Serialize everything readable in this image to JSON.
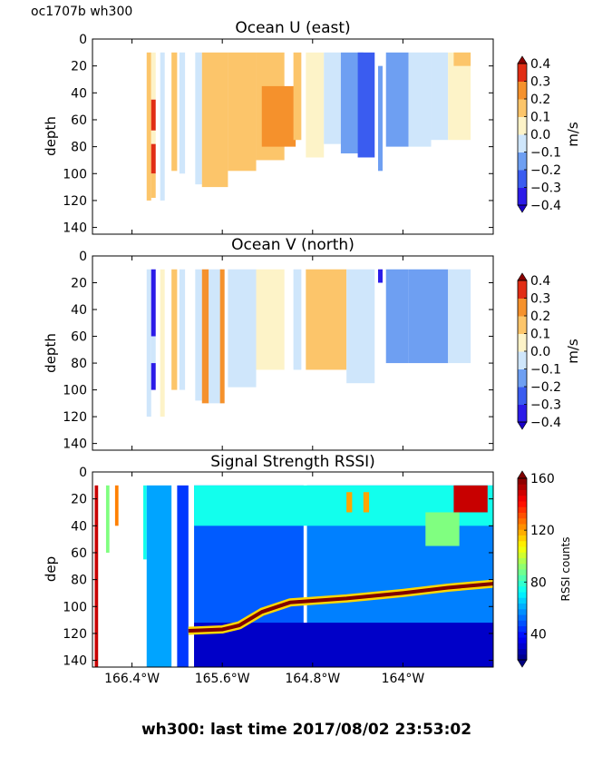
{
  "header": {
    "label": "oc1707b wh300"
  },
  "footer": {
    "text": "wh300: last time 2017/08/02 23:53:02"
  },
  "colors": {
    "jet_lo": "#00007f",
    "jet_hi": "#7f0000",
    "axes": "#000000",
    "background": "#ffffff"
  },
  "chart_data": [
    {
      "type": "heatmap",
      "title": "Ocean U (east)",
      "ylabel": "depth",
      "ylim": [
        145,
        0
      ],
      "yticks": [
        "0",
        "20",
        "40",
        "60",
        "80",
        "100",
        "120",
        "140"
      ],
      "xlim": [
        -166.75,
        -163.2
      ],
      "colorbar": {
        "label": "m/s",
        "range": [
          -0.4,
          0.4
        ],
        "ticks": [
          "0.4",
          "0.3",
          "0.2",
          "0.1",
          "0.0",
          "−0.1",
          "−0.2",
          "−0.3",
          "−0.4"
        ],
        "levels": 8
      },
      "cells": [
        {
          "x": [
            -166.27,
            -166.23
          ],
          "y": [
            10,
            120
          ],
          "value": 0.1
        },
        {
          "x": [
            -166.23,
            -166.19
          ],
          "y": [
            10,
            45
          ],
          "value": 0.0
        },
        {
          "x": [
            -166.23,
            -166.19
          ],
          "y": [
            45,
            68
          ],
          "value": 0.4
        },
        {
          "x": [
            -166.23,
            -166.19
          ],
          "y": [
            68,
            78
          ],
          "value": 0.0
        },
        {
          "x": [
            -166.23,
            -166.19
          ],
          "y": [
            78,
            100
          ],
          "value": 0.35
        },
        {
          "x": [
            -166.23,
            -166.19
          ],
          "y": [
            100,
            118
          ],
          "value": 0.1
        },
        {
          "x": [
            -166.15,
            -166.11
          ],
          "y": [
            10,
            120
          ],
          "value": -0.1
        },
        {
          "x": [
            -166.05,
            -166.0
          ],
          "y": [
            10,
            98
          ],
          "value": 0.1
        },
        {
          "x": [
            -165.98,
            -165.93
          ],
          "y": [
            10,
            100
          ],
          "value": -0.1
        },
        {
          "x": [
            -165.84,
            -165.78
          ],
          "y": [
            10,
            108
          ],
          "value": -0.05
        },
        {
          "x": [
            -165.78,
            -165.55
          ],
          "y": [
            10,
            110
          ],
          "value": 0.1
        },
        {
          "x": [
            -165.55,
            -165.3
          ],
          "y": [
            10,
            98
          ],
          "value": 0.15
        },
        {
          "x": [
            -165.3,
            -165.05
          ],
          "y": [
            10,
            90
          ],
          "value": 0.15
        },
        {
          "x": [
            -165.25,
            -164.95
          ],
          "y": [
            35,
            80
          ],
          "value": 0.25
        },
        {
          "x": [
            -164.97,
            -164.9
          ],
          "y": [
            10,
            75
          ],
          "value": 0.1
        },
        {
          "x": [
            -164.86,
            -164.7
          ],
          "y": [
            10,
            88
          ],
          "value": 0.0
        },
        {
          "x": [
            -164.7,
            -164.55
          ],
          "y": [
            10,
            78
          ],
          "value": -0.1
        },
        {
          "x": [
            -164.55,
            -164.35
          ],
          "y": [
            10,
            85
          ],
          "value": -0.2
        },
        {
          "x": [
            -164.4,
            -164.25
          ],
          "y": [
            10,
            88
          ],
          "value": -0.3
        },
        {
          "x": [
            -164.22,
            -164.18
          ],
          "y": [
            20,
            98
          ],
          "value": -0.2
        },
        {
          "x": [
            -164.15,
            -163.95
          ],
          "y": [
            10,
            80
          ],
          "value": -0.2
        },
        {
          "x": [
            -163.95,
            -163.75
          ],
          "y": [
            10,
            80
          ],
          "value": -0.1
        },
        {
          "x": [
            -163.75,
            -163.6
          ],
          "y": [
            10,
            75
          ],
          "value": -0.05
        },
        {
          "x": [
            -163.6,
            -163.4
          ],
          "y": [
            10,
            75
          ],
          "value": 0.05
        },
        {
          "x": [
            -163.55,
            -163.4
          ],
          "y": [
            10,
            20
          ],
          "value": 0.15
        }
      ]
    },
    {
      "type": "heatmap",
      "title": "Ocean V (north)",
      "ylabel": "depth",
      "ylim": [
        145,
        0
      ],
      "yticks": [
        "0",
        "20",
        "40",
        "60",
        "80",
        "100",
        "120",
        "140"
      ],
      "xlim": [
        -166.75,
        -163.2
      ],
      "colorbar": {
        "label": "m/s",
        "range": [
          -0.4,
          0.4
        ],
        "ticks": [
          "0.4",
          "0.3",
          "0.2",
          "0.1",
          "0.0",
          "−0.1",
          "−0.2",
          "−0.3",
          "−0.4"
        ],
        "levels": 8
      },
      "cells": [
        {
          "x": [
            -166.27,
            -166.23
          ],
          "y": [
            10,
            120
          ],
          "value": -0.1
        },
        {
          "x": [
            -166.23,
            -166.19
          ],
          "y": [
            10,
            60
          ],
          "value": -0.4
        },
        {
          "x": [
            -166.23,
            -166.19
          ],
          "y": [
            60,
            80
          ],
          "value": -0.05
        },
        {
          "x": [
            -166.23,
            -166.19
          ],
          "y": [
            80,
            100
          ],
          "value": -0.4
        },
        {
          "x": [
            -166.15,
            -166.11
          ],
          "y": [
            10,
            120
          ],
          "value": 0.05
        },
        {
          "x": [
            -166.05,
            -166.0
          ],
          "y": [
            10,
            100
          ],
          "value": 0.1
        },
        {
          "x": [
            -165.98,
            -165.93
          ],
          "y": [
            10,
            100
          ],
          "value": -0.1
        },
        {
          "x": [
            -165.84,
            -165.78
          ],
          "y": [
            10,
            108
          ],
          "value": -0.1
        },
        {
          "x": [
            -165.78,
            -165.72
          ],
          "y": [
            10,
            110
          ],
          "value": 0.2
        },
        {
          "x": [
            -165.72,
            -165.6
          ],
          "y": [
            10,
            110
          ],
          "value": -0.1
        },
        {
          "x": [
            -165.62,
            -165.58
          ],
          "y": [
            10,
            110
          ],
          "value": 0.3
        },
        {
          "x": [
            -165.55,
            -165.3
          ],
          "y": [
            10,
            98
          ],
          "value": -0.1
        },
        {
          "x": [
            -165.3,
            -165.05
          ],
          "y": [
            10,
            85
          ],
          "value": 0.05
        },
        {
          "x": [
            -164.97,
            -164.9
          ],
          "y": [
            10,
            85
          ],
          "value": -0.1
        },
        {
          "x": [
            -164.86,
            -164.5
          ],
          "y": [
            10,
            85
          ],
          "value": 0.1
        },
        {
          "x": [
            -164.5,
            -164.25
          ],
          "y": [
            10,
            95
          ],
          "value": -0.1
        },
        {
          "x": [
            -164.22,
            -164.18
          ],
          "y": [
            10,
            20
          ],
          "value": -0.4
        },
        {
          "x": [
            -164.15,
            -163.95
          ],
          "y": [
            10,
            80
          ],
          "value": -0.2
        },
        {
          "x": [
            -163.95,
            -163.6
          ],
          "y": [
            10,
            80
          ],
          "value": -0.15
        },
        {
          "x": [
            -163.6,
            -163.4
          ],
          "y": [
            10,
            80
          ],
          "value": -0.1
        }
      ]
    },
    {
      "type": "heatmap",
      "title": "Signal Strength RSSI)",
      "ylabel": "dep",
      "ylim": [
        145,
        0
      ],
      "yticks": [
        "0",
        "20",
        "40",
        "60",
        "80",
        "100",
        "120",
        "140"
      ],
      "xlim": [
        -166.75,
        -163.2
      ],
      "xticks": [
        {
          "value": -166.4,
          "label": "166.4°W"
        },
        {
          "value": -165.6,
          "label": "165.6°W"
        },
        {
          "value": -164.8,
          "label": "164.8°W"
        },
        {
          "value": -164.0,
          "label": "164°W"
        }
      ],
      "colorbar": {
        "label": "RSSI counts",
        "range": [
          20,
          160
        ],
        "ticks": [
          "160",
          "120",
          "80",
          "40"
        ],
        "levels": 32
      },
      "cells": [
        {
          "x": [
            -166.73,
            -166.7
          ],
          "y": [
            10,
            145
          ],
          "value": 150
        },
        {
          "x": [
            -166.63,
            -166.6
          ],
          "y": [
            10,
            60
          ],
          "value": 90
        },
        {
          "x": [
            -166.55,
            -166.52
          ],
          "y": [
            10,
            40
          ],
          "value": 125
        },
        {
          "x": [
            -166.3,
            -166.27
          ],
          "y": [
            10,
            65
          ],
          "value": 75
        },
        {
          "x": [
            -166.27,
            -166.05
          ],
          "y": [
            10,
            145
          ],
          "value": 60
        },
        {
          "x": [
            -166.0,
            -165.9
          ],
          "y": [
            10,
            145
          ],
          "value": 45
        },
        {
          "x": [
            -165.85,
            -164.88
          ],
          "y": [
            10,
            145
          ],
          "value": 50
        },
        {
          "x": [
            -164.85,
            -163.2
          ],
          "y": [
            10,
            145
          ],
          "value": 55
        },
        {
          "x": [
            -165.85,
            -163.2
          ],
          "y": [
            10,
            40
          ],
          "value": 75
        },
        {
          "x": [
            -164.5,
            -164.45
          ],
          "y": [
            15,
            30
          ],
          "value": 120
        },
        {
          "x": [
            -164.35,
            -164.3
          ],
          "y": [
            15,
            30
          ],
          "value": 120
        },
        {
          "x": [
            -163.55,
            -163.25
          ],
          "y": [
            10,
            30
          ],
          "value": 150
        },
        {
          "x": [
            -163.8,
            -163.5
          ],
          "y": [
            30,
            55
          ],
          "value": 90
        },
        {
          "x": [
            -165.85,
            -163.2
          ],
          "y": [
            112,
            145
          ],
          "value": 30
        }
      ],
      "lines": [
        {
          "name": "",
          "x": [
            -165.9,
            -165.6,
            -165.45,
            -165.25,
            -165.0,
            -164.5,
            -164.0,
            -163.6,
            -163.2
          ],
          "y": [
            118,
            117,
            114,
            104,
            97,
            94,
            90,
            86,
            83
          ],
          "value": 160
        }
      ]
    }
  ]
}
